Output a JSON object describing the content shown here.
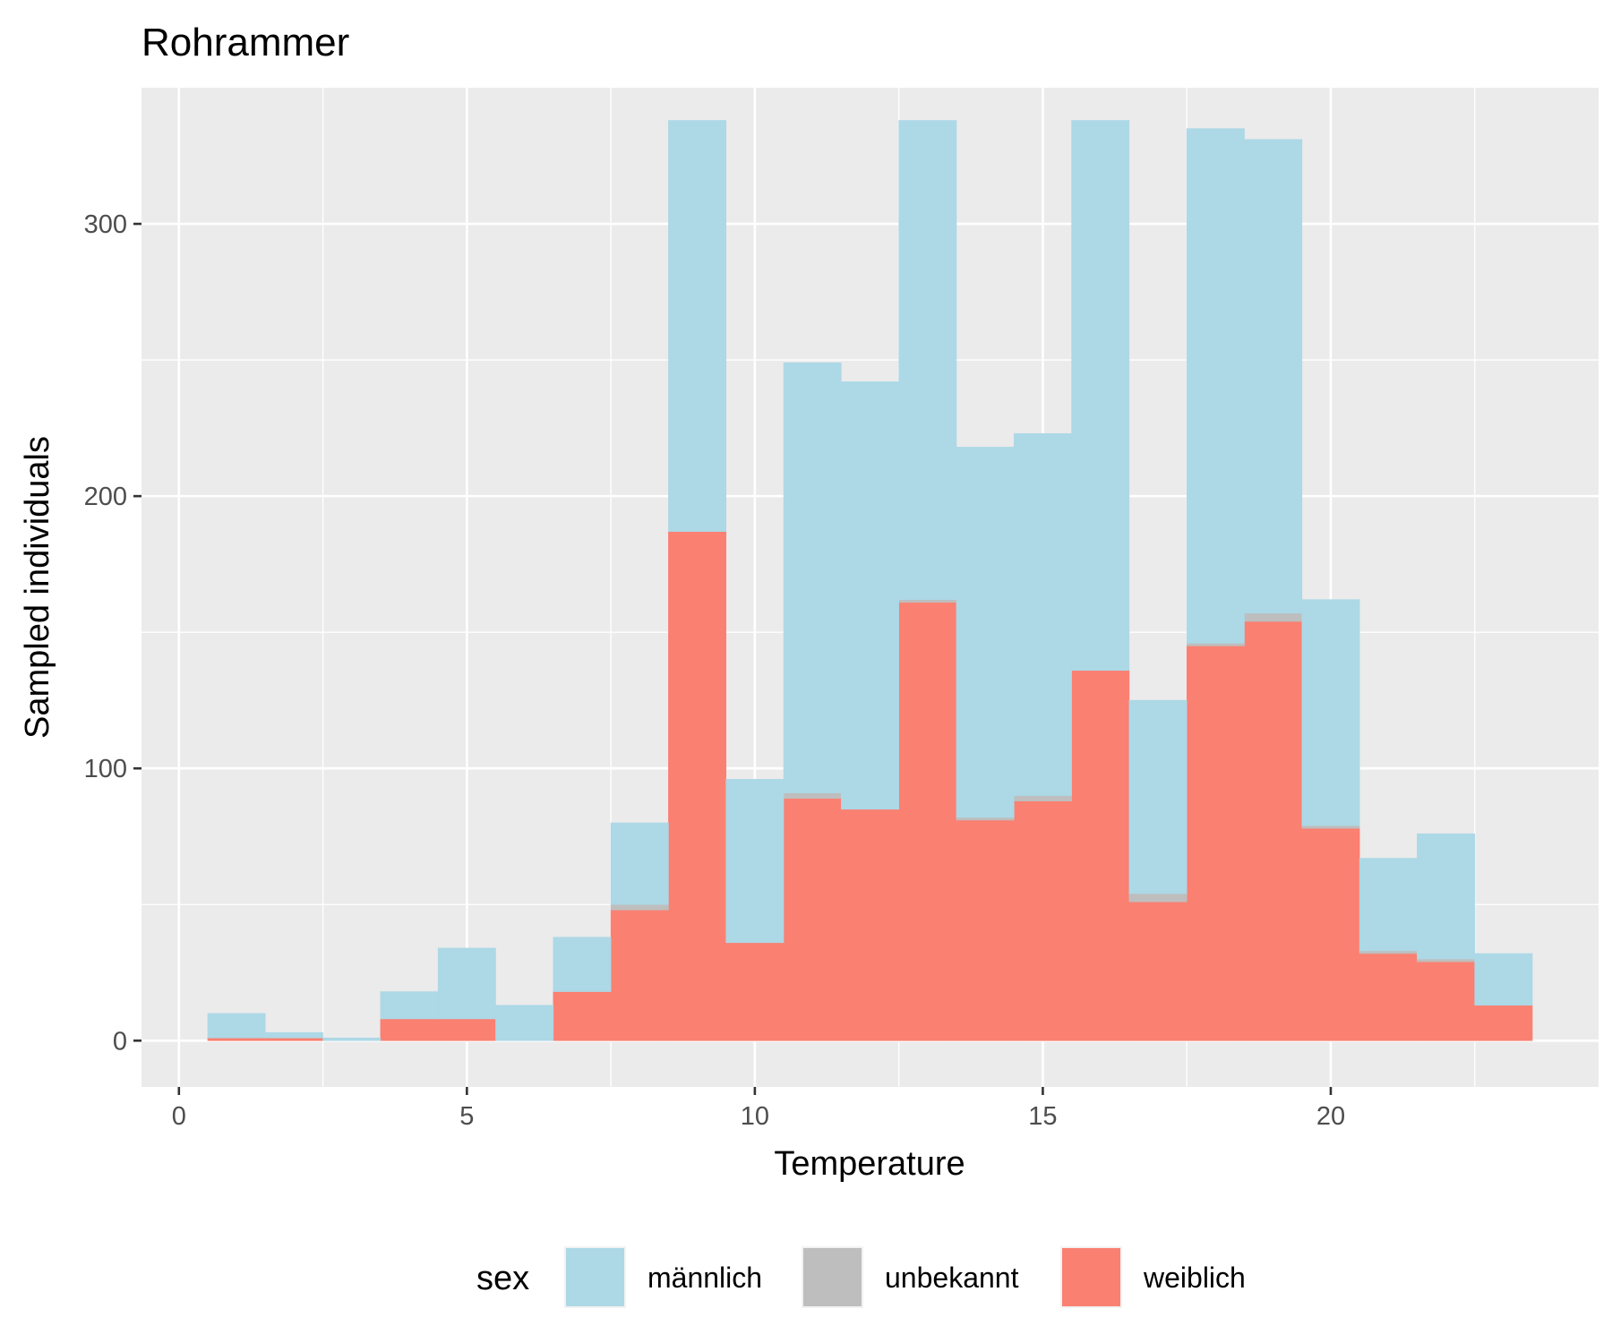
{
  "chart_data": {
    "type": "bar",
    "stacked": true,
    "title": "Rohrammer",
    "xlabel": "Temperature",
    "ylabel": "Sampled individuals",
    "x_ticks": [
      0,
      5,
      10,
      15,
      20
    ],
    "y_ticks": [
      0,
      100,
      200,
      300
    ],
    "xlim": [
      -0.65,
      24.65
    ],
    "ylim": [
      -17,
      350
    ],
    "grid": true,
    "bin_width": 1,
    "x": [
      1,
      2,
      3,
      4,
      5,
      6,
      7,
      8,
      9,
      10,
      11,
      12,
      13,
      14,
      15,
      16,
      17,
      18,
      19,
      20,
      21,
      22,
      23
    ],
    "series": [
      {
        "name": "weiblich",
        "color": "#FA8072",
        "values": [
          1,
          1,
          0,
          8,
          8,
          0,
          18,
          48,
          187,
          36,
          89,
          85,
          161,
          81,
          88,
          136,
          51,
          145,
          154,
          78,
          32,
          29,
          13
        ]
      },
      {
        "name": "unbekannt",
        "color": "#BEBEBE",
        "values": [
          0,
          0,
          0,
          0,
          0,
          0,
          0,
          2,
          0,
          0,
          2,
          0,
          1,
          1,
          2,
          0,
          3,
          1,
          3,
          1,
          1,
          1,
          0
        ]
      },
      {
        "name": "männlich",
        "color": "#ADD8E6",
        "values": [
          9,
          2,
          1,
          10,
          26,
          13,
          20,
          30,
          151,
          60,
          158,
          157,
          176,
          136,
          133,
          202,
          71,
          189,
          174,
          83,
          34,
          46,
          19
        ]
      }
    ],
    "legend": {
      "title": "sex",
      "position": "bottom",
      "items": [
        {
          "label": "männlich",
          "color": "#ADD8E6"
        },
        {
          "label": "unbekannt",
          "color": "#BEBEBE"
        },
        {
          "label": "weiblich",
          "color": "#FA8072"
        }
      ]
    }
  }
}
